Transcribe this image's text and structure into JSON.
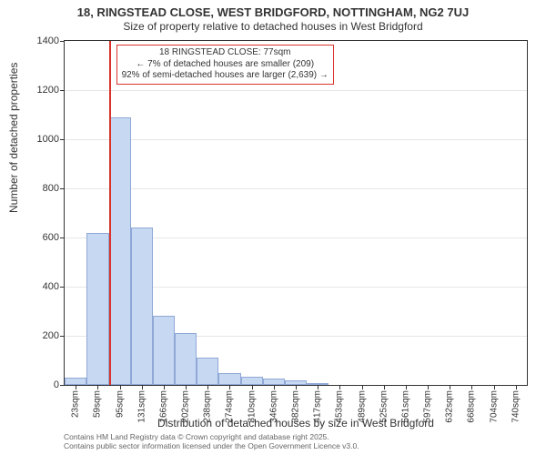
{
  "title": "18, RINGSTEAD CLOSE, WEST BRIDGFORD, NOTTINGHAM, NG2 7UJ",
  "subtitle": "Size of property relative to detached houses in West Bridgford",
  "ylabel": "Number of detached properties",
  "xlabel": "Distribution of detached houses by size in West Bridgford",
  "footer_line1": "Contains HM Land Registry data © Crown copyright and database right 2025.",
  "footer_line2": "Contains public sector information licensed under the Open Government Licence v3.0.",
  "annotation": {
    "line1": "18 RINGSTEAD CLOSE: 77sqm",
    "line2": "← 7% of detached houses are smaller (209)",
    "line3": "92% of semi-detached houses are larger (2,639) →"
  },
  "chart": {
    "type": "histogram",
    "xlim": [
      5,
      758
    ],
    "ylim": [
      0,
      1400
    ],
    "ytick_step": 200,
    "background_color": "#ffffff",
    "grid_color": "#e6e6e6",
    "axis_color": "#333333",
    "bar_fill": "#c7d8f2",
    "bar_stroke": "#8fa8d6",
    "marker_color": "#d9332b",
    "marker_x": 77,
    "title_fontsize": 13,
    "subtitle_fontsize": 12,
    "label_fontsize": 12,
    "tick_fontsize": 11,
    "xtick_fontsize": 10,
    "annotation_fontsize": 10,
    "footer_fontsize": 8.5,
    "bar_bin_width": 35.8,
    "x_ticks": [
      23,
      59,
      95,
      131,
      166,
      202,
      238,
      274,
      310,
      346,
      382,
      417,
      453,
      489,
      525,
      561,
      597,
      632,
      668,
      704,
      740
    ],
    "x_tick_labels": [
      "23sqm",
      "59sqm",
      "95sqm",
      "131sqm",
      "166sqm",
      "202sqm",
      "238sqm",
      "274sqm",
      "310sqm",
      "346sqm",
      "382sqm",
      "417sqm",
      "453sqm",
      "489sqm",
      "525sqm",
      "561sqm",
      "597sqm",
      "632sqm",
      "668sqm",
      "704sqm",
      "740sqm"
    ],
    "bars": [
      {
        "x_start": 5,
        "x_end": 41,
        "value": 30
      },
      {
        "x_start": 41,
        "x_end": 77,
        "value": 620
      },
      {
        "x_start": 77,
        "x_end": 113,
        "value": 1090
      },
      {
        "x_start": 113,
        "x_end": 149,
        "value": 640
      },
      {
        "x_start": 149,
        "x_end": 184,
        "value": 280
      },
      {
        "x_start": 184,
        "x_end": 220,
        "value": 210
      },
      {
        "x_start": 220,
        "x_end": 256,
        "value": 110
      },
      {
        "x_start": 256,
        "x_end": 292,
        "value": 50
      },
      {
        "x_start": 292,
        "x_end": 328,
        "value": 35
      },
      {
        "x_start": 328,
        "x_end": 364,
        "value": 25
      },
      {
        "x_start": 364,
        "x_end": 400,
        "value": 20
      },
      {
        "x_start": 400,
        "x_end": 435,
        "value": 8
      }
    ]
  }
}
